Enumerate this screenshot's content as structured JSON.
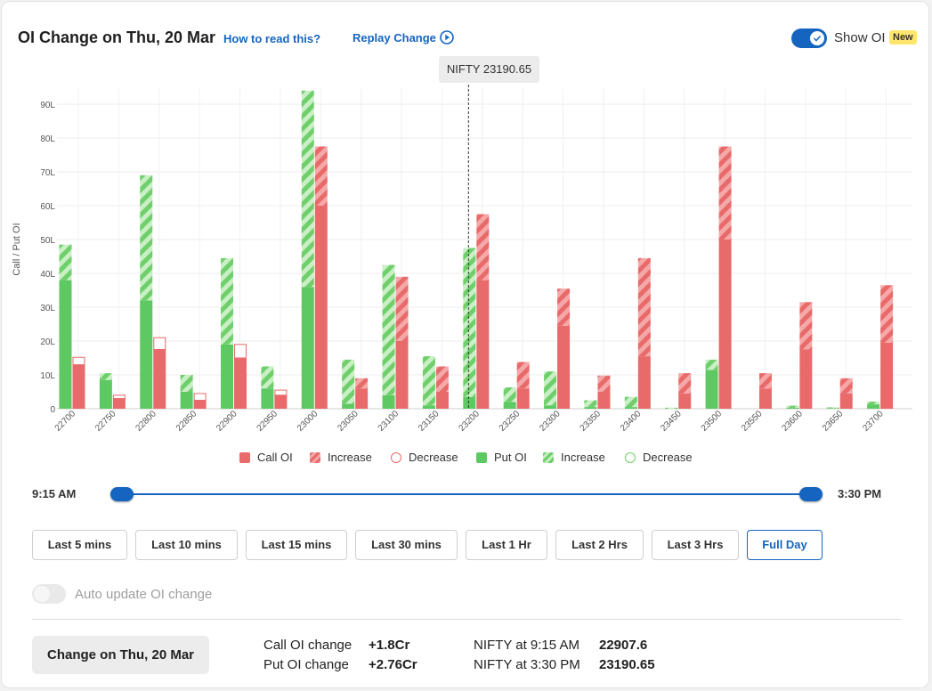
{
  "header": {
    "title": "OI Change on Thu, 20 Mar",
    "how_to_read": "How to read this?",
    "replay": "Replay Change",
    "show_oi": "Show OI",
    "new_badge": "New"
  },
  "tooltip": "NIFTY 23190.65",
  "chart_data": {
    "type": "bar",
    "ylabel": "Call / Put OI",
    "ylim": [
      0,
      90
    ],
    "yticks": [
      0,
      10,
      20,
      30,
      40,
      50,
      60,
      70,
      80,
      90
    ],
    "ytick_labels": [
      "0",
      "10L",
      "20L",
      "30L",
      "40L",
      "50L",
      "60L",
      "70L",
      "80L",
      "90L"
    ],
    "unit": "L",
    "categories": [
      "22700",
      "22750",
      "22800",
      "22850",
      "22900",
      "22950",
      "23000",
      "23050",
      "23100",
      "23150",
      "23200",
      "23250",
      "23300",
      "23350",
      "23400",
      "23450",
      "23500",
      "23550",
      "23600",
      "23650",
      "23700"
    ],
    "spot_marker": 23190.65,
    "series": [
      {
        "name": "Put OI",
        "values": [
          38,
          8.5,
          32,
          5,
          19,
          6,
          36,
          1.5,
          4,
          1,
          3.5,
          2,
          1,
          0.5,
          0.5,
          0,
          11.5,
          0,
          0.3,
          0.2,
          1.3
        ]
      },
      {
        "name": "Put OI Increase",
        "values": [
          10.5,
          2,
          37,
          5,
          25.5,
          6.5,
          58,
          13,
          38.5,
          14.5,
          44,
          4.3,
          10,
          2,
          3,
          0.3,
          3,
          0,
          0.6,
          0.2,
          0.8
        ]
      },
      {
        "name": "Put OI Decrease",
        "values": [
          0,
          0,
          0,
          0,
          0,
          0,
          0,
          0,
          0,
          0,
          0,
          0,
          0,
          0,
          0,
          0,
          0,
          0,
          0,
          0,
          0
        ]
      },
      {
        "name": "Call OI",
        "values": [
          13,
          3,
          17.5,
          2.5,
          15,
          4,
          60,
          6,
          20,
          5,
          38,
          6,
          24.5,
          5,
          15.5,
          4.5,
          50,
          6,
          17.5,
          4.5,
          19.5
        ]
      },
      {
        "name": "Call OI Increase",
        "values": [
          0,
          0,
          0,
          0,
          0,
          0,
          17.5,
          3,
          19,
          7.5,
          19.5,
          7.8,
          11,
          4.8,
          29,
          6,
          27.5,
          4.5,
          14,
          4.5,
          17
        ]
      },
      {
        "name": "Call OI Decrease",
        "values": [
          2.2,
          1,
          3.5,
          2,
          4,
          1.5,
          0,
          0,
          0,
          0,
          0,
          0,
          0,
          0,
          0,
          0,
          0,
          0,
          0,
          0,
          0
        ]
      }
    ],
    "legend": [
      "Call OI",
      "Increase",
      "Decrease",
      "Put OI",
      "Increase",
      "Decrease"
    ],
    "colors": {
      "call": "#e86a6a",
      "call_light": "#f5a8a8",
      "put": "#5ec962",
      "put_light": "#b5e6b0"
    },
    "grid": true,
    "legend_position": "bottom"
  },
  "timeline": {
    "start": "9:15 AM",
    "end": "3:30 PM"
  },
  "range_buttons": [
    "Last 5 mins",
    "Last 10 mins",
    "Last 15 mins",
    "Last 30 mins",
    "Last 1 Hr",
    "Last 2 Hrs",
    "Last 3 Hrs",
    "Full Day"
  ],
  "active_range": "Full Day",
  "auto_update_label": "Auto update OI change",
  "summary": {
    "button": "Change on Thu, 20 Mar",
    "call_label": "Call OI change",
    "call_value": "+1.8Cr",
    "put_label": "Put OI change",
    "put_value": "+2.76Cr",
    "nifty_open_label": "NIFTY at 9:15 AM",
    "nifty_open_value": "22907.6",
    "nifty_close_label": "NIFTY at 3:30 PM",
    "nifty_close_value": "23190.65"
  }
}
